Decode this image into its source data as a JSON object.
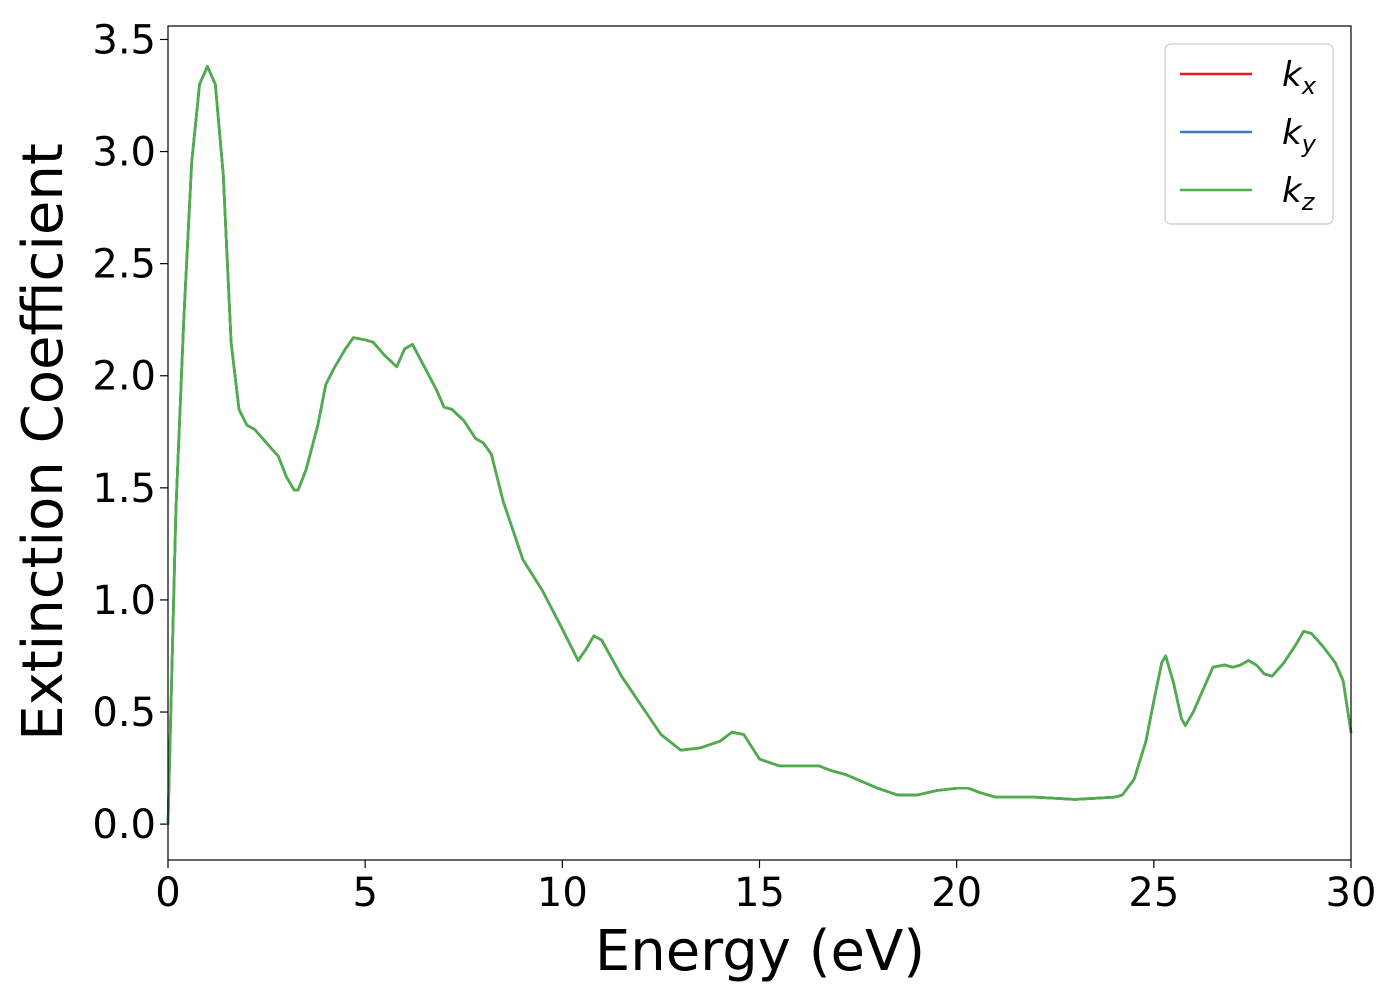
{
  "chart_data": {
    "type": "line",
    "title": "",
    "xlabel": "Energy (eV)",
    "ylabel": "Extinction Coefficient",
    "xlim": [
      0,
      30
    ],
    "ylim": [
      -0.16,
      3.56
    ],
    "xticks": [
      "0",
      "5",
      "10",
      "15",
      "20",
      "25",
      "30"
    ],
    "yticks": [
      "0.0",
      "0.5",
      "1.0",
      "1.5",
      "2.0",
      "2.5",
      "3.0",
      "3.5"
    ],
    "grid": false,
    "legend_position": "top-right",
    "colors": {
      "kx": "#e41a1c",
      "ky": "#377eb8",
      "kz": "#4daf4a"
    },
    "series": [
      {
        "name": "k_x",
        "legend_base": "k",
        "legend_sub": "x",
        "color_key": "kx"
      },
      {
        "name": "k_y",
        "legend_base": "k",
        "legend_sub": "y",
        "color_key": "ky"
      },
      {
        "name": "k_z",
        "legend_base": "k",
        "legend_sub": "z",
        "color_key": "kz"
      }
    ],
    "x": [
      0,
      0.2,
      0.4,
      0.6,
      0.8,
      1.0,
      1.2,
      1.4,
      1.6,
      1.8,
      2.0,
      2.2,
      2.4,
      2.6,
      2.8,
      3.0,
      3.2,
      3.3,
      3.5,
      3.8,
      4.0,
      4.2,
      4.5,
      4.7,
      5.0,
      5.2,
      5.5,
      5.8,
      6.0,
      6.2,
      6.5,
      6.8,
      7.0,
      7.2,
      7.5,
      7.8,
      8.0,
      8.2,
      8.5,
      9.0,
      9.5,
      10.0,
      10.2,
      10.4,
      10.6,
      10.8,
      11.0,
      11.5,
      12.0,
      12.5,
      13.0,
      13.5,
      14.0,
      14.3,
      14.6,
      15.0,
      15.5,
      16.0,
      16.5,
      16.8,
      17.2,
      17.6,
      18.0,
      18.5,
      19.0,
      19.5,
      20.0,
      20.3,
      20.6,
      21.0,
      21.5,
      22.0,
      22.5,
      23.0,
      23.5,
      24.0,
      24.2,
      24.5,
      24.8,
      25.0,
      25.2,
      25.3,
      25.5,
      25.7,
      25.8,
      26.0,
      26.3,
      26.5,
      26.8,
      27.0,
      27.2,
      27.4,
      27.6,
      27.8,
      28.0,
      28.3,
      28.6,
      28.8,
      29.0,
      29.3,
      29.6,
      29.8,
      30.0
    ],
    "y": [
      0.0,
      1.4,
      2.25,
      2.95,
      3.3,
      3.38,
      3.3,
      2.9,
      2.15,
      1.85,
      1.78,
      1.76,
      1.72,
      1.68,
      1.64,
      1.55,
      1.49,
      1.49,
      1.58,
      1.78,
      1.96,
      2.03,
      2.12,
      2.17,
      2.16,
      2.15,
      2.09,
      2.04,
      2.12,
      2.14,
      2.04,
      1.94,
      1.86,
      1.85,
      1.8,
      1.72,
      1.7,
      1.65,
      1.44,
      1.18,
      1.04,
      0.87,
      0.8,
      0.73,
      0.78,
      0.84,
      0.82,
      0.66,
      0.53,
      0.4,
      0.33,
      0.34,
      0.37,
      0.41,
      0.4,
      0.29,
      0.26,
      0.26,
      0.26,
      0.24,
      0.22,
      0.19,
      0.16,
      0.13,
      0.13,
      0.15,
      0.16,
      0.16,
      0.14,
      0.12,
      0.12,
      0.12,
      0.115,
      0.11,
      0.115,
      0.12,
      0.13,
      0.2,
      0.37,
      0.55,
      0.72,
      0.75,
      0.63,
      0.47,
      0.44,
      0.5,
      0.62,
      0.7,
      0.71,
      0.7,
      0.71,
      0.73,
      0.71,
      0.67,
      0.66,
      0.72,
      0.8,
      0.86,
      0.85,
      0.79,
      0.72,
      0.64,
      0.41
    ]
  }
}
